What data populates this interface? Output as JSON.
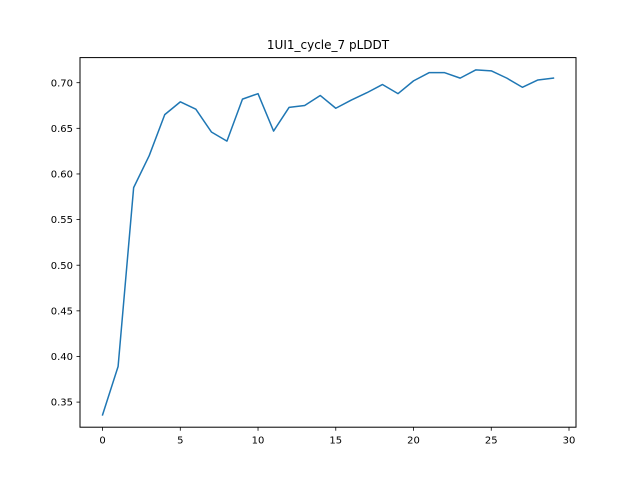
{
  "chart_data": {
    "type": "line",
    "title": "1UI1_cycle_7 pLDDT",
    "xlabel": "",
    "ylabel": "",
    "xlim": [
      -1.45,
      30.45
    ],
    "ylim": [
      0.3225,
      0.7275
    ],
    "x_ticks": [
      0,
      5,
      10,
      15,
      20,
      25,
      30
    ],
    "y_ticks": [
      0.35,
      0.4,
      0.45,
      0.5,
      0.55,
      0.6,
      0.65,
      0.7
    ],
    "x_tick_labels": [
      "0",
      "5",
      "10",
      "15",
      "20",
      "25",
      "30"
    ],
    "y_tick_labels": [
      "0.35",
      "0.40",
      "0.45",
      "0.50",
      "0.55",
      "0.60",
      "0.65",
      "0.70"
    ],
    "grid": false,
    "legend": false,
    "series": [
      {
        "color": "#1f77b4",
        "x": [
          0,
          1,
          2,
          3,
          4,
          5,
          6,
          7,
          8,
          9,
          10,
          11,
          12,
          13,
          14,
          15,
          16,
          17,
          18,
          19,
          20,
          21,
          22,
          23,
          24,
          25,
          26,
          27,
          28,
          29
        ],
        "values": [
          0.336,
          0.389,
          0.585,
          0.62,
          0.665,
          0.679,
          0.671,
          0.646,
          0.636,
          0.682,
          0.688,
          0.647,
          0.673,
          0.675,
          0.686,
          0.672,
          0.681,
          0.689,
          0.698,
          0.688,
          0.702,
          0.711,
          0.711,
          0.705,
          0.714,
          0.713,
          0.705,
          0.695,
          0.703,
          0.705
        ]
      }
    ]
  }
}
